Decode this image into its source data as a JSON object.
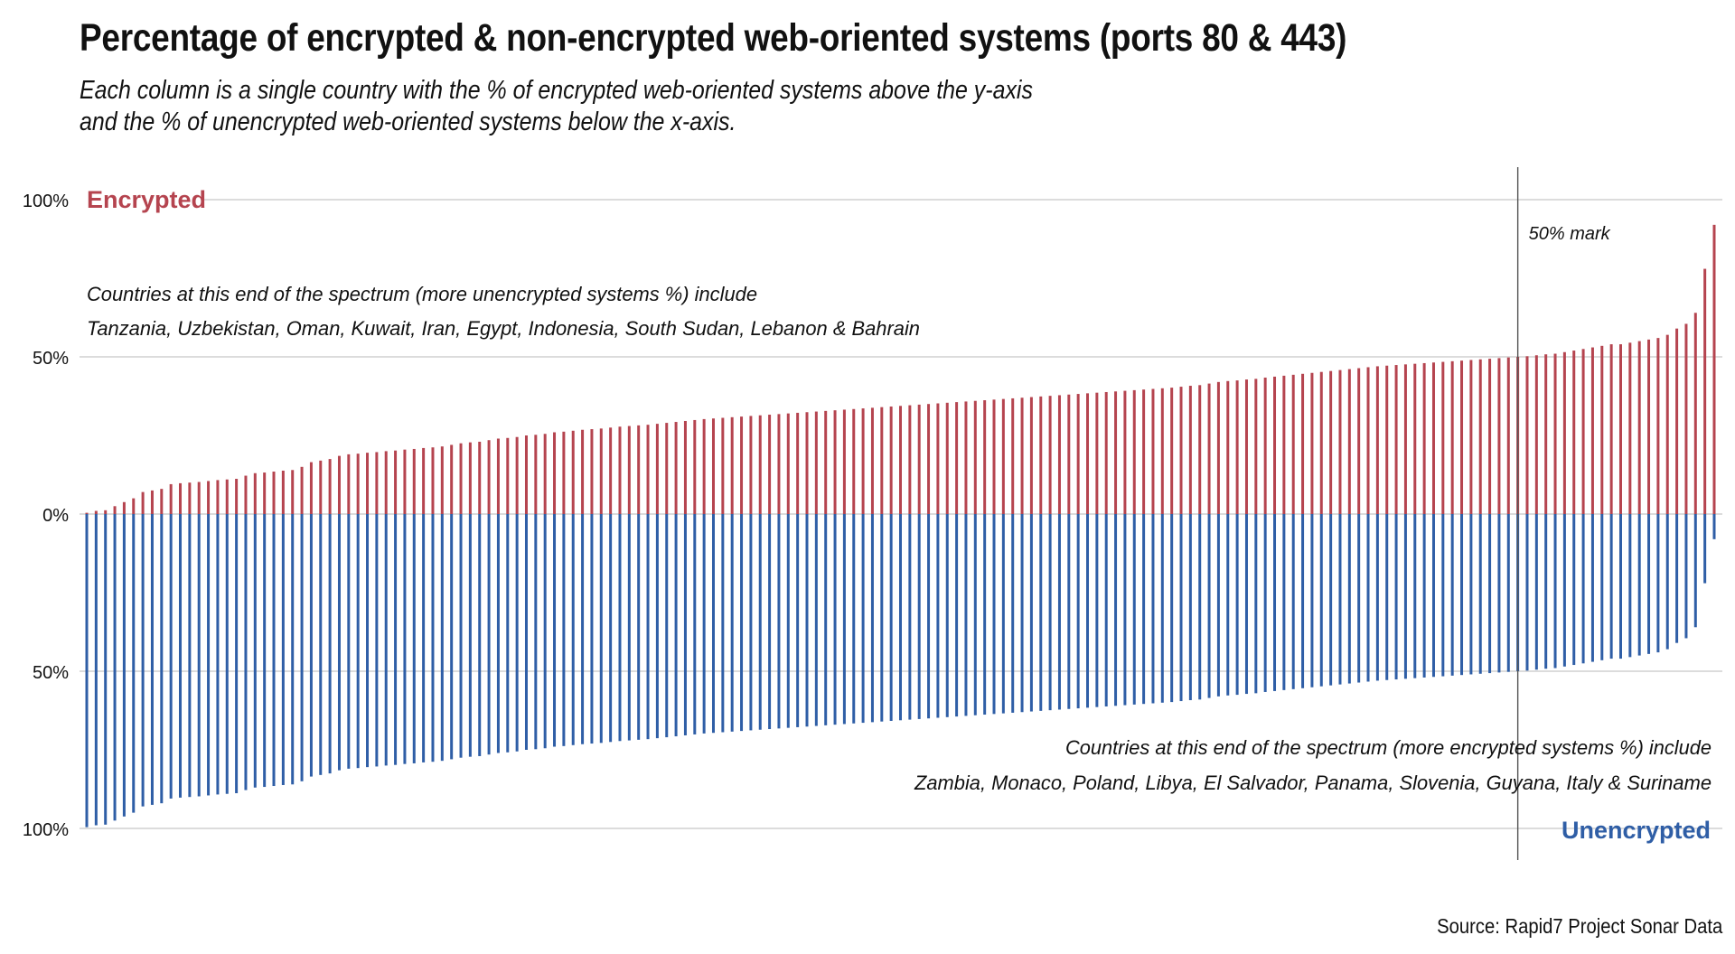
{
  "header": {
    "title": "Percentage of encrypted & non-encrypted web-oriented systems (ports 80 & 443)",
    "subtitle_line1": "Each column is a single country with the % of encrypted web-oriented systems above the y-axis",
    "subtitle_line2": "and the % of unencrypted web-oriented systems below the x-axis."
  },
  "footer": {
    "source": "Source: Rapid7 Project Sonar Data"
  },
  "chart_data": {
    "type": "bar",
    "layout": "diverging",
    "y_tick_labels": [
      "100%",
      "50%",
      "0%",
      "50%",
      "100%"
    ],
    "y_tick_values": [
      100,
      50,
      0,
      -50,
      -100
    ],
    "ylim": [
      -100,
      100
    ],
    "grid": true,
    "labels": {
      "encrypted": "Encrypted",
      "unencrypted": "Unencrypted",
      "mark": "50% mark"
    },
    "annotations": {
      "left_line1": "Countries at this end of the spectrum (more unencrypted systems %) include",
      "left_line2": "Tanzania, Uzbekistan, Oman, Kuwait, Iran, Egypt, Indonesia, South Sudan, Lebanon & Bahrain",
      "right_line1": "Countries at this end of the spectrum (more encrypted systems %) include",
      "right_line2": "Zambia, Monaco, Poland, Libya, El Salvador, Panama, Slovenia, Guyana, Italy & Suriname"
    },
    "reference_line": {
      "name": "50% mark",
      "value": 50
    },
    "colors": {
      "encrypted": "#b5444f",
      "unencrypted": "#2f5ea6",
      "grid": "#c8c8c8",
      "reference": "#555555"
    },
    "series": [
      {
        "name": "Encrypted",
        "values": [
          0.4,
          1.0,
          1.2,
          2.5,
          3.8,
          5.0,
          7.0,
          7.5,
          8.0,
          9.5,
          9.8,
          10.0,
          10.2,
          10.5,
          10.8,
          11.0,
          11.2,
          12.2,
          13.0,
          13.2,
          13.5,
          13.8,
          14.0,
          15.0,
          16.5,
          17.0,
          17.5,
          18.5,
          19.0,
          19.2,
          19.5,
          19.7,
          20.0,
          20.2,
          20.5,
          20.7,
          21.0,
          21.2,
          21.5,
          22.0,
          22.5,
          22.8,
          23.0,
          23.5,
          24.0,
          24.2,
          24.5,
          25.0,
          25.2,
          25.5,
          26.0,
          26.2,
          26.5,
          26.8,
          27.0,
          27.2,
          27.5,
          27.8,
          28.0,
          28.2,
          28.4,
          28.7,
          29.0,
          29.3,
          29.6,
          29.9,
          30.2,
          30.4,
          30.6,
          30.8,
          31.0,
          31.2,
          31.4,
          31.6,
          31.8,
          32.0,
          32.2,
          32.4,
          32.6,
          32.8,
          33.0,
          33.2,
          33.4,
          33.6,
          33.8,
          34.0,
          34.2,
          34.4,
          34.6,
          34.8,
          35.0,
          35.2,
          35.4,
          35.6,
          35.8,
          36.0,
          36.2,
          36.4,
          36.6,
          36.8,
          37.0,
          37.2,
          37.4,
          37.6,
          37.8,
          38.0,
          38.2,
          38.4,
          38.6,
          38.8,
          39.0,
          39.2,
          39.4,
          39.6,
          39.8,
          40.0,
          40.2,
          40.5,
          40.8,
          41.0,
          41.5,
          42.0,
          42.3,
          42.5,
          42.8,
          43.0,
          43.4,
          43.7,
          44.0,
          44.3,
          44.6,
          44.9,
          45.2,
          45.5,
          45.8,
          46.1,
          46.4,
          46.7,
          47.0,
          47.2,
          47.4,
          47.6,
          47.8,
          48.0,
          48.2,
          48.4,
          48.6,
          48.8,
          49.0,
          49.2,
          49.4,
          49.6,
          49.8,
          50.0,
          50.2,
          50.5,
          50.8,
          51.0,
          51.5,
          52.0,
          52.5,
          53.0,
          53.5,
          54.0,
          54.0,
          54.5,
          55.0,
          55.5,
          56.0,
          57.0,
          59.0,
          60.5,
          64.0,
          78.0,
          92.0
        ]
      },
      {
        "name": "Unencrypted",
        "values": [
          -99.6,
          -99.0,
          -98.8,
          -97.5,
          -96.2,
          -95.0,
          -93.0,
          -92.5,
          -92.0,
          -90.5,
          -90.2,
          -90.0,
          -89.8,
          -89.5,
          -89.2,
          -89.0,
          -88.8,
          -87.8,
          -87.0,
          -86.8,
          -86.5,
          -86.2,
          -86.0,
          -85.0,
          -83.5,
          -83.0,
          -82.5,
          -81.5,
          -81.0,
          -80.8,
          -80.5,
          -80.3,
          -80.0,
          -79.8,
          -79.5,
          -79.3,
          -79.0,
          -78.8,
          -78.5,
          -78.0,
          -77.5,
          -77.2,
          -77.0,
          -76.5,
          -76.0,
          -75.8,
          -75.5,
          -75.0,
          -74.8,
          -74.5,
          -74.0,
          -73.8,
          -73.5,
          -73.2,
          -73.0,
          -72.8,
          -72.5,
          -72.2,
          -72.0,
          -71.8,
          -71.6,
          -71.3,
          -71.0,
          -70.7,
          -70.4,
          -70.1,
          -69.8,
          -69.6,
          -69.4,
          -69.2,
          -69.0,
          -68.8,
          -68.6,
          -68.4,
          -68.2,
          -68.0,
          -67.8,
          -67.6,
          -67.4,
          -67.2,
          -67.0,
          -66.8,
          -66.6,
          -66.4,
          -66.2,
          -66.0,
          -65.8,
          -65.6,
          -65.4,
          -65.2,
          -65.0,
          -64.8,
          -64.6,
          -64.4,
          -64.2,
          -64.0,
          -63.8,
          -63.6,
          -63.4,
          -63.2,
          -63.0,
          -62.8,
          -62.6,
          -62.4,
          -62.2,
          -62.0,
          -61.8,
          -61.6,
          -61.4,
          -61.2,
          -61.0,
          -60.8,
          -60.6,
          -60.4,
          -60.2,
          -60.0,
          -59.8,
          -59.5,
          -59.2,
          -59.0,
          -58.5,
          -58.0,
          -57.7,
          -57.5,
          -57.2,
          -57.0,
          -56.6,
          -56.3,
          -56.0,
          -55.7,
          -55.4,
          -55.1,
          -54.8,
          -54.5,
          -54.2,
          -53.9,
          -53.6,
          -53.3,
          -53.0,
          -52.8,
          -52.6,
          -52.4,
          -52.2,
          -52.0,
          -51.8,
          -51.6,
          -51.4,
          -51.2,
          -51.0,
          -50.8,
          -50.6,
          -50.4,
          -50.2,
          -50.0,
          -49.8,
          -49.5,
          -49.2,
          -49.0,
          -48.5,
          -48.0,
          -47.5,
          -47.0,
          -46.5,
          -46.0,
          -46.0,
          -45.5,
          -45.0,
          -44.5,
          -44.0,
          -43.0,
          -41.0,
          -39.5,
          -36.0,
          -22.0,
          -8.0
        ]
      }
    ]
  }
}
